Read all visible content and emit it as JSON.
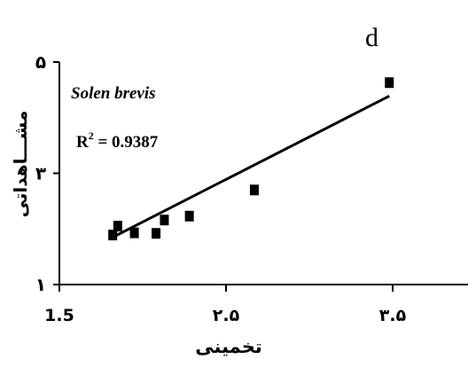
{
  "chart_data": {
    "type": "scatter",
    "panel_label": "d",
    "xlabel": "تخمینی",
    "ylabel": "مشـــاهداتی",
    "xlim": [
      1.5,
      3.9
    ],
    "ylim": [
      1,
      5
    ],
    "x_ticks": [
      {
        "value": 1.5,
        "label": "1.5"
      },
      {
        "value": 2.5,
        "label": "۲.۵"
      },
      {
        "value": 3.5,
        "label": "۳.۵"
      }
    ],
    "y_ticks": [
      {
        "value": 1,
        "label": "۱"
      },
      {
        "value": 3,
        "label": "۳"
      },
      {
        "value": 5,
        "label": "۵"
      }
    ],
    "annotations": {
      "species": "Solen brevis",
      "r2_label": "R",
      "r2_sup": "2",
      "r2_value": " = 0.9387"
    },
    "series": [
      {
        "points": [
          [
            1.82,
            1.89
          ],
          [
            1.85,
            2.05
          ],
          [
            1.95,
            1.93
          ],
          [
            2.08,
            1.92
          ],
          [
            2.13,
            2.16
          ],
          [
            2.28,
            2.23
          ],
          [
            2.67,
            2.7
          ],
          [
            3.48,
            4.63
          ]
        ],
        "color": "#000000"
      }
    ],
    "trendline": {
      "x": [
        1.82,
        3.48
      ],
      "y": [
        1.85,
        4.39
      ]
    },
    "grid": false
  }
}
